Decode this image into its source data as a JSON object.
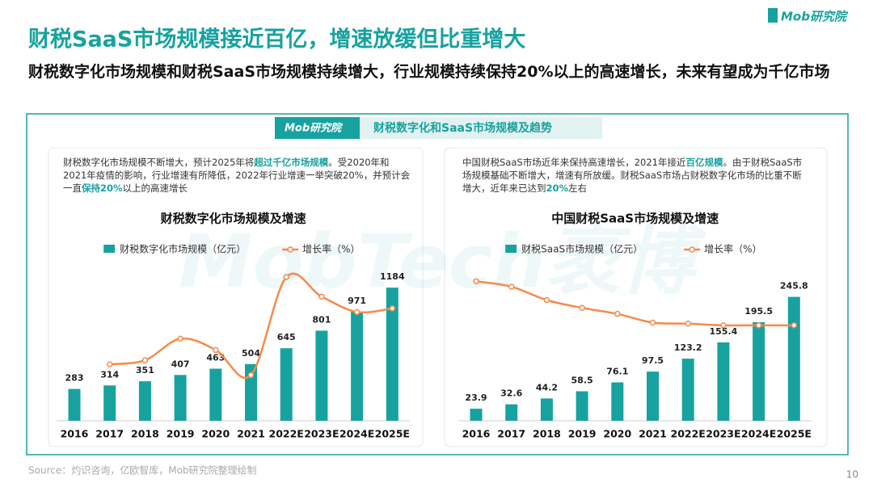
{
  "logo": "Mob研究院",
  "title": "财税SaaS市场规模接近百亿，增速放缓但比重增大",
  "subtitle": "财税数字化市场规模和财税SaaS市场规模持续增大，行业规模持续保持20%以上的高速增长，未来有望成为千亿市场",
  "banner": {
    "logo": "Mob研究院",
    "title": "财税数字化和SaaS市场规模及趋势"
  },
  "watermark": "MobTech袤博",
  "source": "Source：灼识咨询，亿欧智库，Mob研究院整理绘制",
  "page_number": "10",
  "chart_data": [
    {
      "type": "combo",
      "title": "财税数字化市场规模及增速",
      "description": [
        {
          "text": "财税数字化市场规模不断增大，预计2025年将",
          "bold": false
        },
        {
          "text": "超过千亿市场规模",
          "bold": true
        },
        {
          "text": "。受2020年和2021年疫情的影响，行业增速有所降低，2022年行业增速一举突破20%，并预计会一直",
          "bold": false
        },
        {
          "text": "保持20%",
          "bold": true
        },
        {
          "text": "以上的高速增长",
          "bold": false
        }
      ],
      "categories": [
        "2016",
        "2017",
        "2018",
        "2019",
        "2020",
        "2021",
        "2022E",
        "2023E",
        "2024E",
        "2025E"
      ],
      "series": [
        {
          "name": "财税数字化市场规模（亿元）",
          "color": "#17a2a0",
          "values": [
            283,
            314,
            351,
            407,
            463,
            504,
            645,
            801,
            971,
            1184
          ]
        },
        {
          "name": "增长率（%）",
          "color": "#f58a4b",
          "axis": "y2",
          "values": [
            null,
            11,
            11.8,
            16,
            13.8,
            8.9,
            28,
            24.2,
            21.2,
            21.9
          ]
        }
      ],
      "ylim": [
        0,
        1300
      ],
      "y2lim": [
        0,
        28.5
      ]
    },
    {
      "type": "combo",
      "title": "中国财税SaaS市场规模及增速",
      "description": [
        {
          "text": "中国财税SaaS市场近年来保持高速增长，2021年接近",
          "bold": false
        },
        {
          "text": "百亿规模",
          "bold": true
        },
        {
          "text": "。由于财税SaaS市场规模基础不断增大，增速有所放缓。财税SaaS市场占财税数字化市场的比重不断增大，近年来已达到",
          "bold": false
        },
        {
          "text": "20%",
          "bold": true
        },
        {
          "text": "左右",
          "bold": false
        }
      ],
      "categories": [
        "2016",
        "2017",
        "2018",
        "2019",
        "2020",
        "2021",
        "2022E",
        "2023E",
        "2024E",
        "2025E"
      ],
      "series": [
        {
          "name": "财税SaaS市场规模（亿元）",
          "color": "#17a2a0",
          "values": [
            23.9,
            32.6,
            44.2,
            58.5,
            76.1,
            97.5,
            123.2,
            155.4,
            195.5,
            245.8
          ]
        },
        {
          "name": "增长率（%）",
          "color": "#f58a4b",
          "axis": "y2",
          "values": [
            38,
            36.4,
            32.4,
            30.1,
            28.3,
            25.7,
            25.4,
            24.9,
            24.9,
            24.9
          ]
        }
      ],
      "ylim": [
        0,
        290
      ],
      "y2lim": [
        -3.5,
        40
      ]
    }
  ]
}
